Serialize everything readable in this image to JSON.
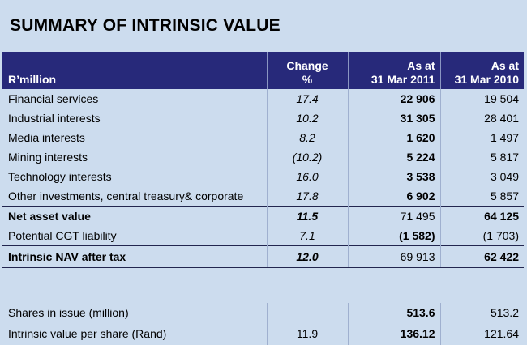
{
  "title": "SUMMARY OF INTRINSIC VALUE",
  "header": {
    "label": "R’million",
    "change_line1": "Change",
    "change_line2": "%",
    "col2011_line1": "As at",
    "col2011_line2": "31 Mar 2011",
    "col2010_line1": "As at",
    "col2010_line2": "31 Mar 2010"
  },
  "rows": [
    {
      "label": "Financial services",
      "change": "17.4",
      "v2011": "22 906",
      "v2010": "19 504"
    },
    {
      "label": "Industrial interests",
      "change": "10.2",
      "v2011": "31 305",
      "v2010": "28 401"
    },
    {
      "label": "Media interests",
      "change": "8.2",
      "v2011": "1 620",
      "v2010": "1 497"
    },
    {
      "label": "Mining interests",
      "change": "(10.2)",
      "v2011": "5 224",
      "v2010": "5 817"
    },
    {
      "label": "Technology interests",
      "change": "16.0",
      "v2011": "3 538",
      "v2010": "3 049"
    },
    {
      "label": "Other investments, central treasury& corporate",
      "change": "17.8",
      "v2011": "6 902",
      "v2010": "5 857"
    },
    {
      "label": "Net asset value",
      "change": "11.5",
      "v2011": "71 495",
      "v2010": "64 125"
    },
    {
      "label": "Potential CGT liability",
      "change": "7.1",
      "v2011": "(1 582)",
      "v2010": "(1 703)"
    },
    {
      "label": "Intrinsic NAV after tax",
      "change": "12.0",
      "v2011": "69 913",
      "v2010": "62 422"
    },
    {
      "label": "Shares in issue (million)",
      "change": "",
      "v2011": "513.6",
      "v2010": "513.2"
    },
    {
      "label": "Intrinsic value per share (Rand)",
      "change": "11.9",
      "v2011": "136.12",
      "v2010": "121.64"
    }
  ],
  "colors": {
    "header_bg": "#27297a",
    "page_bg": "#ccdcee"
  }
}
